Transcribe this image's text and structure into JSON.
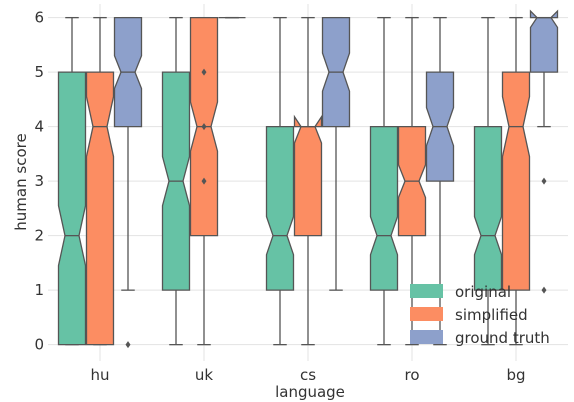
{
  "chart_data": {
    "type": "boxplot",
    "notched": true,
    "xlabel": "language",
    "ylabel": "human score",
    "ylim": [
      -0.3,
      6.25
    ],
    "yticks": [
      0,
      1,
      2,
      3,
      4,
      5,
      6
    ],
    "grid": true,
    "legend_position": "bottom-right",
    "categories": [
      "hu",
      "uk",
      "cs",
      "ro",
      "bg"
    ],
    "series": [
      {
        "name": "original",
        "color": "#66c2a5",
        "boxes": [
          {
            "q1": 0,
            "median": 2,
            "q3": 5,
            "notch_low": 1.45,
            "notch_high": 2.55,
            "whisker_low": 0,
            "whisker_high": 6,
            "outliers": []
          },
          {
            "q1": 1,
            "median": 3,
            "q3": 5,
            "notch_low": 2.55,
            "notch_high": 3.45,
            "whisker_low": 0,
            "whisker_high": 6,
            "outliers": []
          },
          {
            "q1": 1,
            "median": 2,
            "q3": 4,
            "notch_low": 1.65,
            "notch_high": 2.35,
            "whisker_low": 0,
            "whisker_high": 6,
            "outliers": []
          },
          {
            "q1": 1,
            "median": 2,
            "q3": 4,
            "notch_low": 1.65,
            "notch_high": 2.35,
            "whisker_low": 0,
            "whisker_high": 6,
            "outliers": []
          },
          {
            "q1": 1,
            "median": 2,
            "q3": 4,
            "notch_low": 1.65,
            "notch_high": 2.35,
            "whisker_low": 0,
            "whisker_high": 6,
            "outliers": []
          }
        ]
      },
      {
        "name": "simplified",
        "color": "#fc8d62",
        "boxes": [
          {
            "q1": 0,
            "median": 4,
            "q3": 5,
            "notch_low": 3.45,
            "notch_high": 4.55,
            "whisker_low": 0,
            "whisker_high": 6,
            "outliers": []
          },
          {
            "q1": 2,
            "median": 4,
            "q3": 6,
            "notch_low": 3.55,
            "notch_high": 4.45,
            "whisker_low": 0,
            "whisker_high": 6,
            "outliers": [
              3,
              4,
              5
            ]
          },
          {
            "q1": 2,
            "median": 4,
            "q3": 4,
            "notch_low": 3.7,
            "notch_high": 4.18,
            "whisker_low": 0,
            "whisker_high": 6,
            "outliers": []
          },
          {
            "q1": 2,
            "median": 3,
            "q3": 4,
            "notch_low": 2.7,
            "notch_high": 3.3,
            "whisker_low": 0,
            "whisker_high": 6,
            "outliers": []
          },
          {
            "q1": 1,
            "median": 4,
            "q3": 5,
            "notch_low": 3.45,
            "notch_high": 4.55,
            "whisker_low": 0,
            "whisker_high": 6,
            "outliers": []
          }
        ]
      },
      {
        "name": "ground truth",
        "color": "#8da0cb",
        "boxes": [
          {
            "q1": 4,
            "median": 5,
            "q3": 6,
            "notch_low": 4.7,
            "notch_high": 5.3,
            "whisker_low": 1,
            "whisker_high": 6,
            "outliers": [
              0
            ]
          },
          {
            "q1": 6,
            "median": 6,
            "q3": 6,
            "notch_low": 6,
            "notch_high": 6,
            "whisker_low": 6,
            "whisker_high": 6,
            "outliers": []
          },
          {
            "q1": 4,
            "median": 5,
            "q3": 6,
            "notch_low": 4.65,
            "notch_high": 5.35,
            "whisker_low": 1,
            "whisker_high": 6,
            "outliers": []
          },
          {
            "q1": 3,
            "median": 4,
            "q3": 5,
            "notch_low": 3.65,
            "notch_high": 4.35,
            "whisker_low": 0,
            "whisker_high": 6,
            "outliers": []
          },
          {
            "q1": 5,
            "median": 6,
            "q3": 6,
            "notch_low": 5.82,
            "notch_high": 6.12,
            "whisker_low": 4,
            "whisker_high": 6,
            "outliers": [
              1,
              3
            ]
          }
        ]
      }
    ]
  }
}
